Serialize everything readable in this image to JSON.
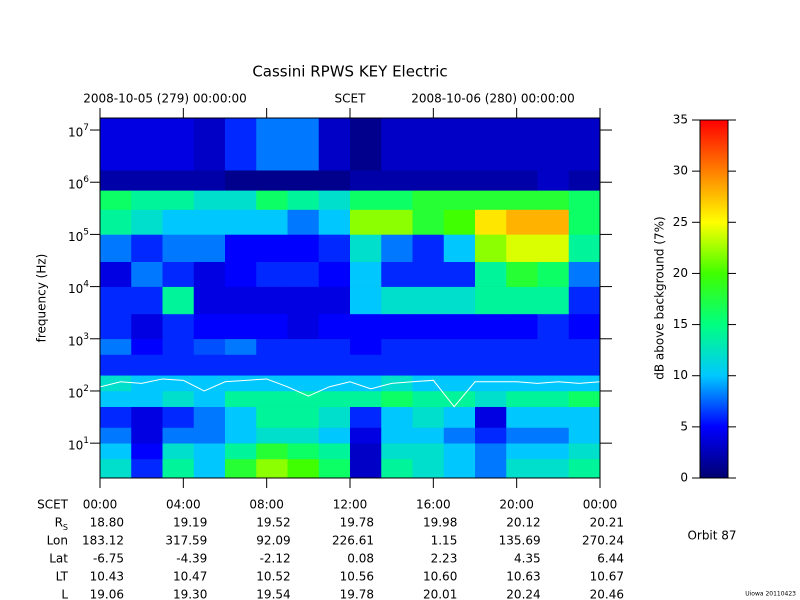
{
  "chart_data": {
    "type": "spectrogram",
    "title": "Cassini RPWS KEY Electric",
    "start_label": "2008-10-05 (279) 00:00:00",
    "axis_center_label": "SCET",
    "end_label": "2008-10-06 (280) 00:00:00",
    "ylabel": "frequency (Hz)",
    "log_y": true,
    "xlim": [
      0,
      24
    ],
    "xticks": [
      {
        "value": 0,
        "label": "00:00"
      },
      {
        "value": 4,
        "label": "04:00"
      },
      {
        "value": 8,
        "label": "08:00"
      },
      {
        "value": 12,
        "label": "12:00"
      },
      {
        "value": 16,
        "label": "16:00"
      },
      {
        "value": 20,
        "label": "20:00"
      },
      {
        "value": 24,
        "label": "00:00"
      }
    ],
    "ylim": [
      2.15,
      17000000
    ],
    "yticks": [
      {
        "value": 10,
        "label": "10",
        "exp": "1"
      },
      {
        "value": 100,
        "label": "10",
        "exp": "2"
      },
      {
        "value": 1000,
        "label": "10",
        "exp": "3"
      },
      {
        "value": 10000,
        "label": "10",
        "exp": "4"
      },
      {
        "value": 100000,
        "label": "10",
        "exp": "5"
      },
      {
        "value": 1000000,
        "label": "10",
        "exp": "6"
      },
      {
        "value": 10000000,
        "label": "10",
        "exp": "7"
      }
    ],
    "time_bins": [
      0,
      1.5,
      3,
      4.5,
      6,
      7.5,
      9,
      10.5,
      12,
      13.5,
      15,
      16.5,
      18,
      19.5,
      21,
      22.5,
      24
    ],
    "freq_bins": [
      2.15,
      5,
      10,
      20,
      50,
      100,
      200,
      500,
      1000,
      3000,
      10000,
      30000,
      100000,
      300000,
      700000,
      1700000,
      17000000
    ],
    "values": [
      [
        12,
        6,
        14,
        10,
        18,
        22,
        20,
        16,
        3,
        14,
        12,
        10,
        8,
        12,
        12,
        14
      ],
      [
        10,
        5,
        12,
        10,
        14,
        18,
        16,
        14,
        3,
        12,
        12,
        10,
        8,
        10,
        10,
        12
      ],
      [
        8,
        4,
        8,
        8,
        10,
        12,
        12,
        10,
        4,
        10,
        10,
        8,
        6,
        8,
        8,
        10
      ],
      [
        6,
        4,
        6,
        8,
        10,
        14,
        14,
        12,
        6,
        10,
        12,
        10,
        4,
        10,
        10,
        10
      ],
      [
        10,
        10,
        12,
        10,
        14,
        14,
        14,
        14,
        14,
        16,
        14,
        14,
        12,
        14,
        14,
        16
      ],
      [
        12,
        10,
        10,
        10,
        10,
        10,
        10,
        10,
        10,
        12,
        10,
        10,
        10,
        10,
        10,
        10
      ],
      [
        6,
        6,
        6,
        6,
        6,
        6,
        6,
        6,
        6,
        6,
        6,
        6,
        6,
        6,
        6,
        6
      ],
      [
        8,
        5,
        6,
        7,
        8,
        6,
        6,
        6,
        5,
        6,
        6,
        6,
        6,
        6,
        6,
        6
      ],
      [
        6,
        4,
        6,
        5,
        5,
        5,
        4,
        5,
        5,
        5,
        5,
        5,
        5,
        5,
        6,
        5
      ],
      [
        6,
        6,
        14,
        4,
        4,
        4,
        4,
        4,
        10,
        12,
        12,
        12,
        14,
        14,
        14,
        6
      ],
      [
        4,
        8,
        6,
        4,
        5,
        6,
        6,
        5,
        10,
        6,
        6,
        6,
        14,
        18,
        16,
        8
      ],
      [
        8,
        6,
        8,
        8,
        5,
        5,
        5,
        6,
        12,
        8,
        6,
        10,
        22,
        24,
        24,
        14
      ],
      [
        14,
        12,
        10,
        10,
        10,
        10,
        8,
        10,
        22,
        22,
        18,
        20,
        26,
        28,
        28,
        16
      ],
      [
        16,
        14,
        14,
        12,
        12,
        16,
        14,
        12,
        16,
        16,
        18,
        18,
        18,
        18,
        18,
        16
      ],
      [
        2,
        2,
        2,
        2,
        1,
        1,
        1,
        1,
        2,
        2,
        2,
        2,
        2,
        2,
        3,
        2
      ],
      [
        4,
        4,
        4,
        3,
        6,
        8,
        8,
        3,
        1,
        3,
        3,
        3,
        3,
        3,
        3,
        3
      ]
    ],
    "trace": {
      "color": "#ffffff",
      "x": [
        0,
        1,
        2,
        3,
        4,
        5,
        6,
        7,
        8,
        9,
        10,
        11,
        12,
        13,
        14,
        15,
        16,
        17,
        18,
        19,
        20,
        21,
        22,
        23,
        24
      ],
      "values": [
        120,
        150,
        140,
        170,
        160,
        100,
        150,
        160,
        170,
        120,
        80,
        120,
        150,
        110,
        140,
        150,
        160,
        50,
        150,
        150,
        150,
        140,
        150,
        140,
        150
      ]
    },
    "clim": [
      0,
      35
    ],
    "cticks": [
      0,
      5,
      10,
      15,
      20,
      25,
      30,
      35
    ],
    "clabel": "dB above background (7%)",
    "colormap": [
      "#000070",
      "#0000ff",
      "#00c8ff",
      "#00ff80",
      "#40ff00",
      "#ffff00",
      "#ff8000",
      "#ff0000"
    ]
  },
  "ephemeris": {
    "label": "SCET",
    "rows": [
      {
        "label": "R",
        "sub": "S",
        "values": [
          "18.80",
          "19.19",
          "19.52",
          "19.78",
          "19.98",
          "20.12",
          "20.21"
        ]
      },
      {
        "label": "Lon",
        "values": [
          "183.12",
          "317.59",
          "92.09",
          "226.61",
          "1.15",
          "135.69",
          "270.24"
        ]
      },
      {
        "label": "Lat",
        "values": [
          "-6.75",
          "-4.39",
          "-2.12",
          "0.08",
          "2.23",
          "4.35",
          "6.44"
        ]
      },
      {
        "label": "LT",
        "values": [
          "10.43",
          "10.47",
          "10.52",
          "10.56",
          "10.60",
          "10.63",
          "10.67"
        ]
      },
      {
        "label": "L",
        "values": [
          "19.06",
          "19.30",
          "19.54",
          "19.78",
          "20.01",
          "20.24",
          "20.46"
        ]
      }
    ]
  },
  "orbit": "Orbit 87",
  "credit": "Uiowa 20110423"
}
